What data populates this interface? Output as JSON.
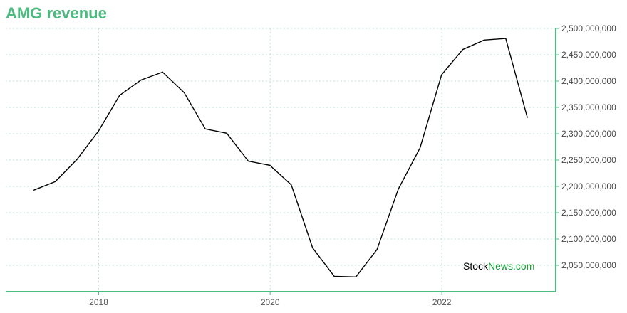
{
  "title": "AMG revenue",
  "watermark": {
    "part1": "Stock",
    "part2": "News.com"
  },
  "colors": {
    "title": "#4cbb7f",
    "axis": "#4cbb7f",
    "grid": "#bfe3d2",
    "line": "#000000",
    "watermark_accent": "#1a9c3a"
  },
  "chart_data": {
    "type": "line",
    "title": "AMG revenue",
    "xlabel": "",
    "ylabel": "",
    "grid": true,
    "y_axis_position": "right",
    "x_ticks": [
      "2018",
      "2020",
      "2022"
    ],
    "y_ticks": [
      "2,050,000,000",
      "2,100,000,000",
      "2,150,000,000",
      "2,200,000,000",
      "2,250,000,000",
      "2,300,000,000",
      "2,350,000,000",
      "2,400,000,000",
      "2,450,000,000",
      "2,500,000,000"
    ],
    "ylim": [
      2000000000,
      2500000000
    ],
    "xlim": [
      "2016-12-01",
      "2023-05-01"
    ],
    "x": [
      "2017-03-31",
      "2017-06-30",
      "2017-09-30",
      "2017-12-31",
      "2018-03-31",
      "2018-06-30",
      "2018-09-30",
      "2018-12-31",
      "2019-03-31",
      "2019-06-30",
      "2019-09-30",
      "2019-12-31",
      "2020-03-31",
      "2020-06-30",
      "2020-09-30",
      "2020-12-31",
      "2021-03-31",
      "2021-06-30",
      "2021-09-30",
      "2021-12-31",
      "2022-03-31",
      "2022-06-30",
      "2022-09-30",
      "2022-12-31"
    ],
    "values": [
      2193000000,
      2209000000,
      2251000000,
      2305000000,
      2373000000,
      2402000000,
      2417000000,
      2378000000,
      2309000000,
      2301000000,
      2248000000,
      2240000000,
      2203000000,
      2083000000,
      2029000000,
      2028000000,
      2080000000,
      2195000000,
      2273000000,
      2412000000,
      2460000000,
      2478000000,
      2481000000,
      2331000000
    ]
  }
}
